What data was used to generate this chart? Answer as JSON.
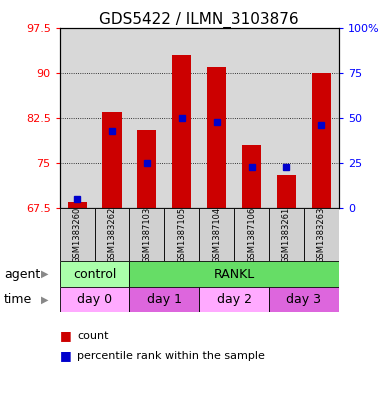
{
  "title": "GDS5422 / ILMN_3103876",
  "samples": [
    "GSM1383260",
    "GSM1383262",
    "GSM1387103",
    "GSM1387105",
    "GSM1387104",
    "GSM1387106",
    "GSM1383261",
    "GSM1383263"
  ],
  "counts": [
    68.5,
    83.5,
    80.5,
    93.0,
    91.0,
    78.0,
    73.0,
    90.0
  ],
  "percentiles": [
    5,
    43,
    25,
    50,
    48,
    23,
    23,
    46
  ],
  "ylim_left": [
    67.5,
    97.5
  ],
  "ylim_right": [
    0,
    100
  ],
  "yticks_left": [
    67.5,
    75.0,
    82.5,
    90.0,
    97.5
  ],
  "yticks_right": [
    0,
    25,
    50,
    75,
    100
  ],
  "ytick_labels_left": [
    "67.5",
    "75",
    "82.5",
    "90",
    "97.5"
  ],
  "ytick_labels_right": [
    "0",
    "25",
    "50",
    "75",
    "100%"
  ],
  "bar_color": "#cc0000",
  "marker_color": "#0000cc",
  "bar_bottom": 67.5,
  "agent_labels": [
    {
      "text": "control",
      "start": 0,
      "end": 2,
      "color": "#aaffaa"
    },
    {
      "text": "RANKL",
      "start": 2,
      "end": 8,
      "color": "#66dd66"
    }
  ],
  "time_labels": [
    {
      "text": "day 0",
      "start": 0,
      "end": 2,
      "color": "#ffaaff"
    },
    {
      "text": "day 1",
      "start": 2,
      "end": 4,
      "color": "#dd66dd"
    },
    {
      "text": "day 2",
      "start": 4,
      "end": 6,
      "color": "#ffaaff"
    },
    {
      "text": "day 3",
      "start": 6,
      "end": 8,
      "color": "#dd66dd"
    }
  ],
  "legend_count_color": "#cc0000",
  "legend_percentile_color": "#0000cc",
  "background_color": "#ffffff",
  "plot_bg_color": "#d8d8d8",
  "title_fontsize": 11,
  "tick_fontsize": 8,
  "sample_fontsize": 6,
  "legend_fontsize": 8,
  "row_label_fontsize": 9
}
